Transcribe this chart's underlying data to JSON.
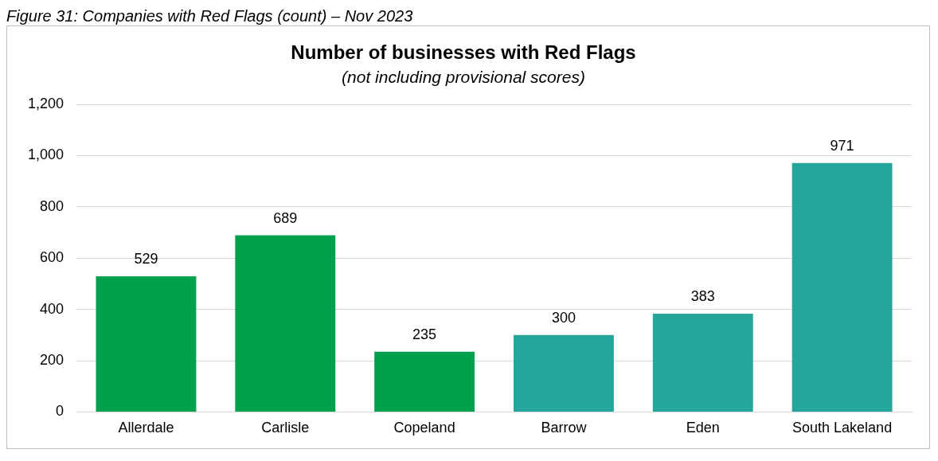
{
  "chart_data": {
    "type": "bar",
    "title": "Number of businesses with Red Flags",
    "subtitle": "(not including provisional scores)",
    "annotations": [
      "Figure 31: Companies with Red Flags (count) – Nov 2023"
    ],
    "categories": [
      "Allerdale",
      "Carlisle",
      "Copeland",
      "Barrow",
      "Eden",
      "South Lakeland"
    ],
    "values": [
      529,
      689,
      235,
      300,
      383,
      971
    ],
    "colors": [
      "#00a14e",
      "#00a14e",
      "#00a14e",
      "#26a69a",
      "#26a69a",
      "#26a69a"
    ],
    "ylim": [
      0,
      1200
    ],
    "yticks": [
      0,
      200,
      400,
      600,
      800,
      {
        "value": 1000,
        "label": "1,000"
      },
      {
        "value": 1200,
        "label": "1,200"
      }
    ],
    "grid": "y",
    "data_labels": true
  }
}
